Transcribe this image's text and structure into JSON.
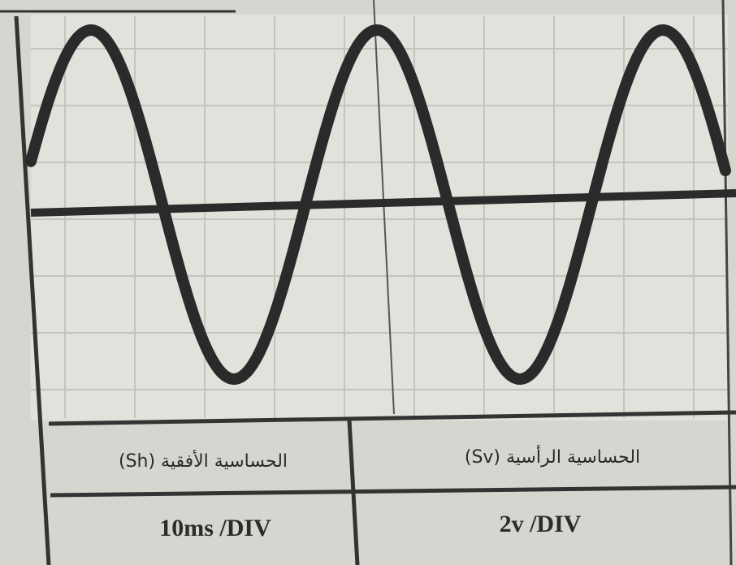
{
  "table": {
    "headers": [
      "الحساسية الأفقية (Sh)",
      "الحساسية الرأسية (Sv)"
    ],
    "rows": [
      [
        "10ms /DIV",
        "2v /DIV"
      ]
    ]
  }
}
